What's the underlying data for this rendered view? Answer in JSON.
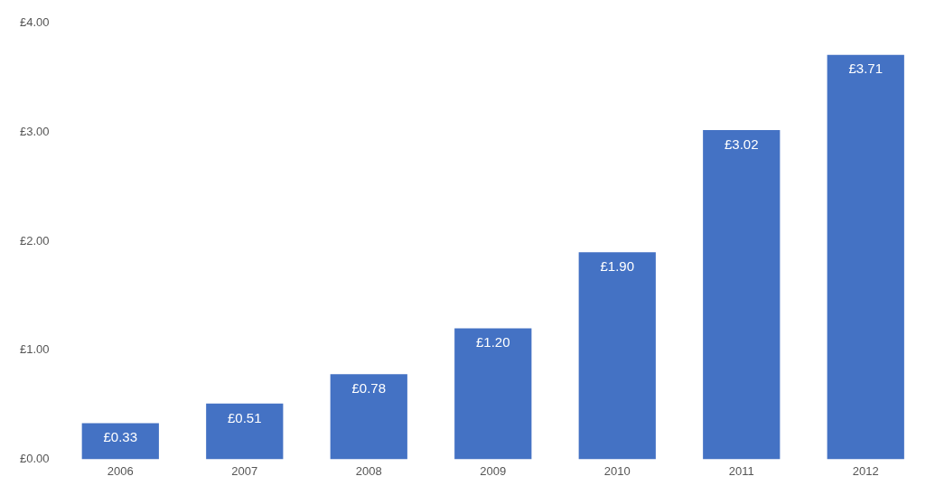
{
  "chart_data": {
    "type": "bar",
    "categories": [
      "2006",
      "2007",
      "2008",
      "2009",
      "2010",
      "2011",
      "2012"
    ],
    "values": [
      0.33,
      0.51,
      0.78,
      1.2,
      1.9,
      3.02,
      3.71
    ],
    "value_labels": [
      "£0.33",
      "£0.51",
      "£0.78",
      "£1.20",
      "£1.90",
      "£3.02",
      "£3.71"
    ],
    "color": "#4472c4",
    "ylim": [
      0,
      4
    ],
    "yticks": [
      {
        "value": 0,
        "label": "£0.00"
      },
      {
        "value": 1,
        "label": "£1.00"
      },
      {
        "value": 2,
        "label": "£2.00"
      },
      {
        "value": 3,
        "label": "£3.00"
      },
      {
        "value": 4,
        "label": "£4.00"
      }
    ],
    "grid": false,
    "legend": false
  }
}
